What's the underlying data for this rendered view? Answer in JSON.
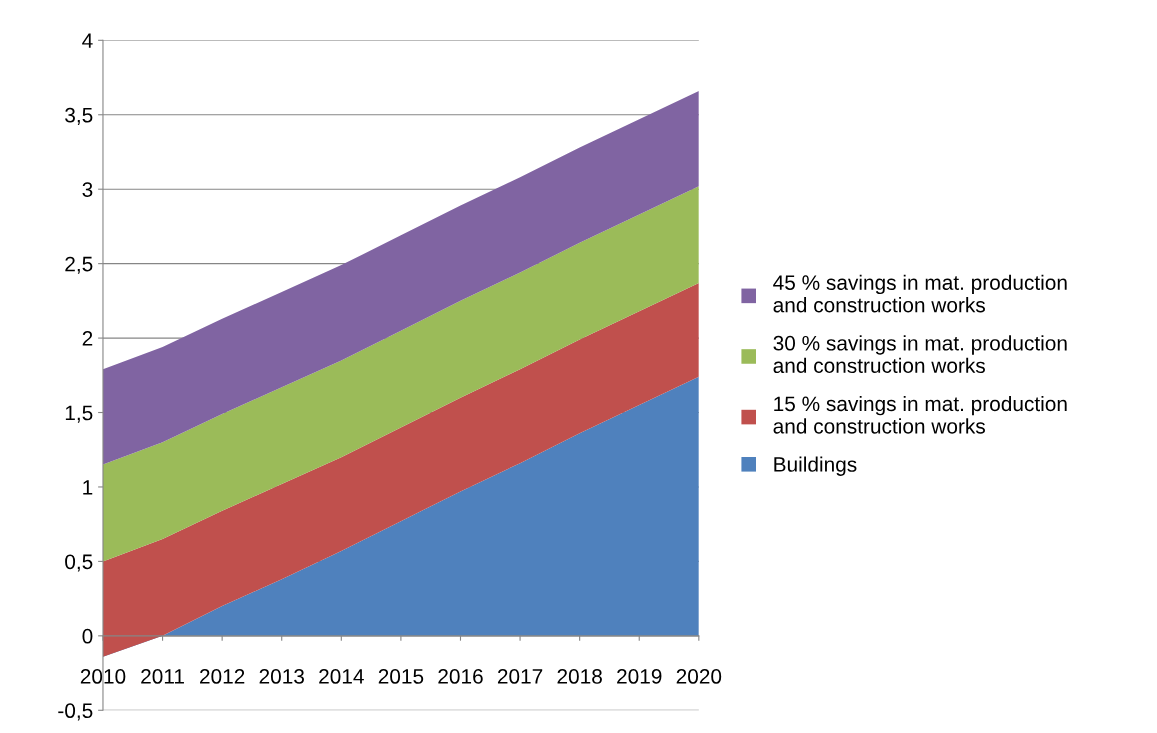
{
  "chart_data": {
    "type": "area",
    "stacked": true,
    "x": [
      2010,
      2011,
      2012,
      2013,
      2014,
      2015,
      2016,
      2017,
      2018,
      2019,
      2020
    ],
    "series": [
      {
        "name": "Buildings",
        "color": "#4f81bd",
        "values": [
          -0.14,
          0.0,
          0.2,
          0.38,
          0.57,
          0.77,
          0.97,
          1.16,
          1.36,
          1.55,
          1.74
        ]
      },
      {
        "name": "15 % savings in mat. production\nand construction works",
        "color": "#c0504d",
        "values": [
          0.64,
          0.65,
          0.64,
          0.64,
          0.63,
          0.63,
          0.63,
          0.63,
          0.63,
          0.63,
          0.63
        ]
      },
      {
        "name": "30 % savings in mat. production\nand construction works",
        "color": "#9bbb59",
        "values": [
          0.65,
          0.65,
          0.65,
          0.65,
          0.65,
          0.65,
          0.65,
          0.65,
          0.65,
          0.65,
          0.65
        ]
      },
      {
        "name": "45 % savings in mat. production\nand construction works",
        "color": "#8064a2",
        "values": [
          0.64,
          0.64,
          0.64,
          0.64,
          0.64,
          0.64,
          0.64,
          0.64,
          0.64,
          0.64,
          0.64
        ]
      }
    ],
    "xlim": [
      2010,
      2020
    ],
    "xticks": [
      2010,
      2011,
      2012,
      2013,
      2014,
      2015,
      2016,
      2017,
      2018,
      2019,
      2020
    ],
    "ylim": [
      -0.5,
      4
    ],
    "yticks": [
      {
        "value": -0.5,
        "label": "-0,5"
      },
      0,
      {
        "value": 0.5,
        "label": "0,5"
      },
      1,
      {
        "value": 1.5,
        "label": "1,5"
      },
      2,
      {
        "value": 2.5,
        "label": "2,5"
      },
      3,
      {
        "value": 3.5,
        "label": "3,5"
      },
      4
    ],
    "grid": "y",
    "legend": "right"
  }
}
